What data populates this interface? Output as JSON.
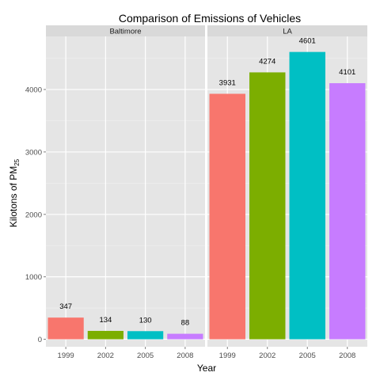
{
  "chart_data": {
    "type": "bar",
    "title": "Comparison of Emissions of Vehicles",
    "xlabel": "Year",
    "ylabel": {
      "main": "Kilotons of PM",
      "subscript": "25"
    },
    "ylim": [
      0,
      4600
    ],
    "yticks": [
      0,
      1000,
      2000,
      3000,
      4000
    ],
    "grid": true,
    "legend": "none",
    "categories": [
      "1999",
      "2002",
      "2005",
      "2008"
    ],
    "colors": {
      "1999": "#F8766D",
      "2002": "#7CAE00",
      "2005": "#00BFC4",
      "2008": "#C77CFF"
    },
    "panels": [
      {
        "name": "Baltimore",
        "values": [
          347,
          134,
          130,
          88
        ],
        "labels": [
          "347",
          "134",
          "130",
          "88"
        ]
      },
      {
        "name": "LA",
        "values": [
          3931,
          4274,
          4601,
          4101
        ],
        "labels": [
          "3931",
          "4274",
          "4601",
          "4101"
        ]
      }
    ]
  }
}
